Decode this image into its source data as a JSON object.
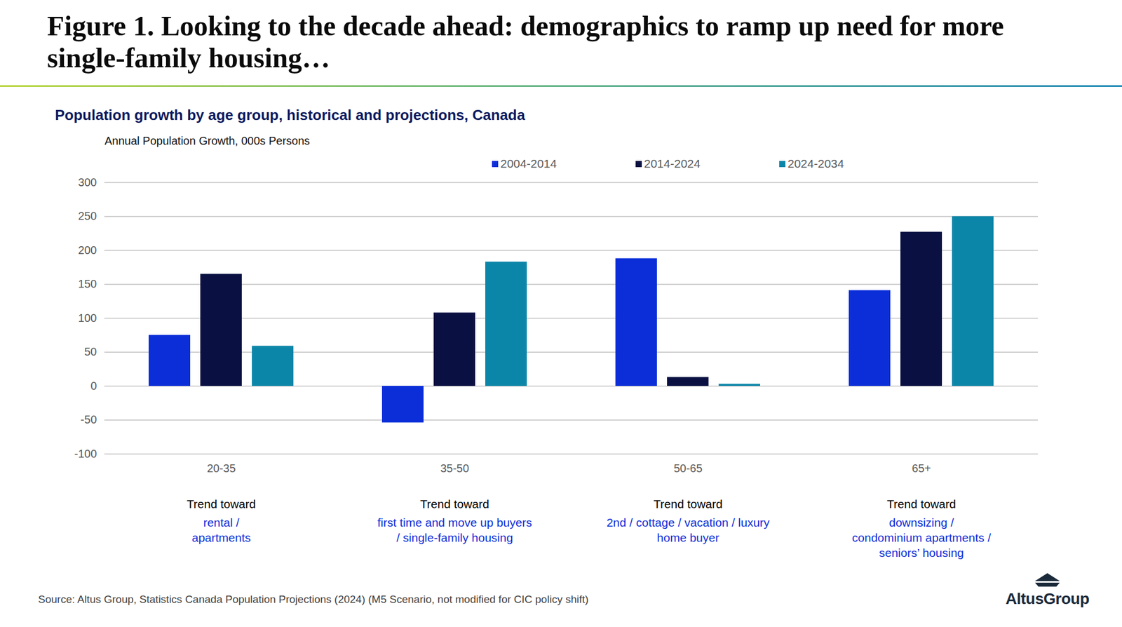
{
  "chart_data": {
    "type": "bar",
    "title": "Figure 1. Looking to the decade ahead: demographics to ramp up need for more single-family housing…",
    "subtitle": "Population growth by age group, historical and projections, Canada",
    "y_label": "Annual Population Growth, 000s Persons",
    "categories": [
      "20-35",
      "35-50",
      "50-65",
      "65+"
    ],
    "series": [
      {
        "name": "2004-2014",
        "color": "#0b2ed8",
        "values": [
          75,
          -54,
          188,
          141
        ]
      },
      {
        "name": "2014-2024",
        "color": "#0a1142",
        "values": [
          165,
          108,
          13,
          227
        ]
      },
      {
        "name": "2024-2034",
        "color": "#0b86a8",
        "values": [
          59,
          183,
          3,
          250
        ]
      }
    ],
    "ylim": [
      -100,
      300
    ],
    "yticks": [
      -100,
      -50,
      0,
      50,
      100,
      150,
      200,
      250,
      300
    ],
    "grid": true,
    "legend": "top",
    "annotations": [
      {
        "category": "20-35",
        "lead": "Trend toward",
        "text": [
          "rental /",
          "apartments"
        ]
      },
      {
        "category": "35-50",
        "lead": "Trend toward",
        "text": [
          "first time and move up buyers",
          "/ single-family housing"
        ]
      },
      {
        "category": "50-65",
        "lead": "Trend toward",
        "text": [
          "2nd / cottage / vacation / luxury",
          "home buyer"
        ]
      },
      {
        "category": "65+",
        "lead": "Trend toward",
        "text": [
          "downsizing /",
          "condominium apartments /",
          "seniors’ housing"
        ]
      }
    ],
    "source": "Source:  Altus Group, Statistics Canada Population Projections (2024) (M5 Scenario, not modified for CIC policy shift)",
    "logo": "AltusGroup"
  }
}
